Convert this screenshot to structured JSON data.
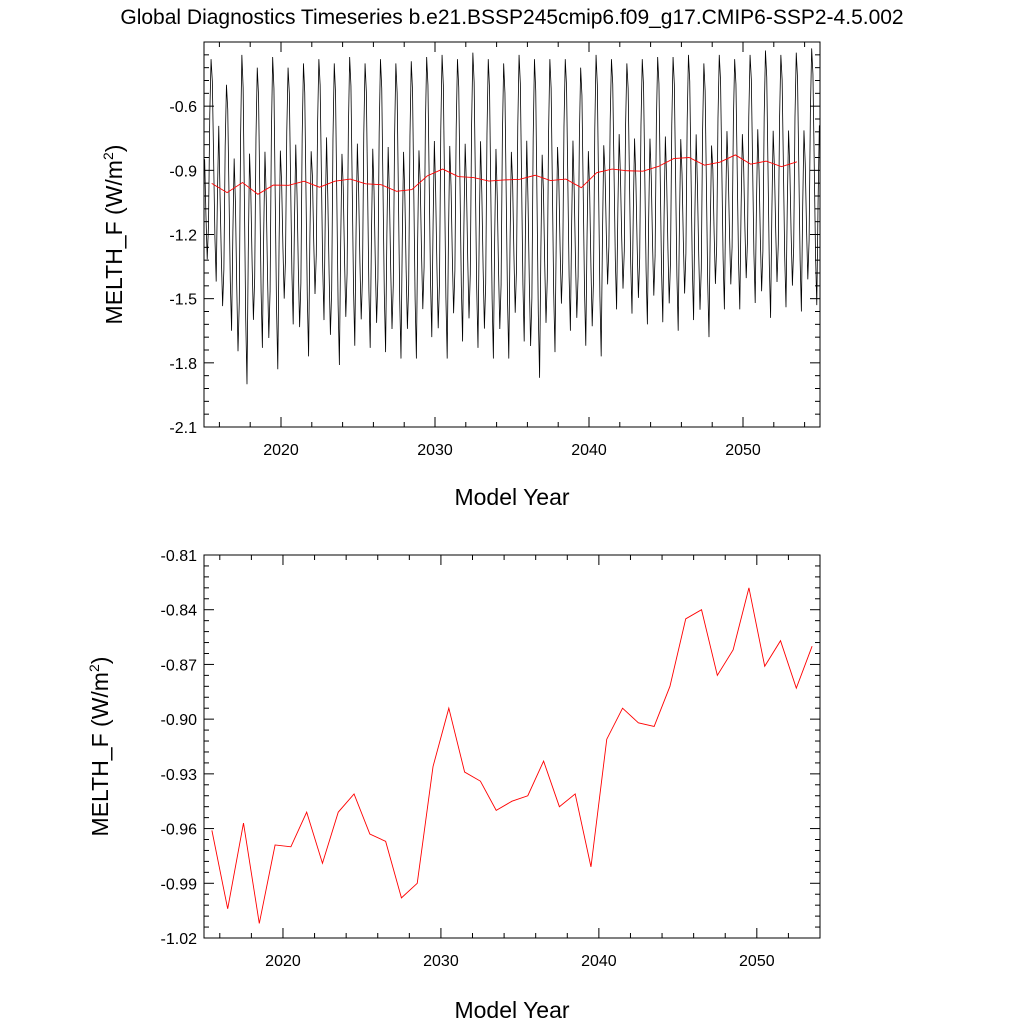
{
  "title": "Global Diagnostics Timeseries b.e21.BSSP245cmip6.f09_g17.CMIP6-SSP2-4.5.002",
  "chart_data": [
    {
      "type": "line",
      "xlabel": "Model Year",
      "ylabel_main": "MELTH_F (W/m",
      "ylabel_sup": "2",
      "ylabel_tail": ")",
      "xlim": [
        2015,
        2055
      ],
      "ylim": [
        -2.1,
        -0.3
      ],
      "xticks": [
        2020,
        2030,
        2040,
        2050
      ],
      "yticks": [
        -2.1,
        -1.8,
        -1.5,
        -1.2,
        -0.9,
        -0.6
      ],
      "ytick_labels": [
        "-2.1",
        "-1.8",
        "-1.5",
        "-1.2",
        "-0.9",
        "-0.6"
      ],
      "grid": false,
      "series": [
        {
          "kind": "monthly",
          "color": "#000000",
          "start_year": 2015,
          "months": 480,
          "year_peaks": [
            -0.38,
            -0.5,
            -0.36,
            -0.42,
            -0.37,
            -0.42,
            -0.4,
            -0.38,
            -0.4,
            -0.37,
            -0.4,
            -0.38,
            -0.4,
            -0.39,
            -0.37,
            -0.36,
            -0.38,
            -0.35,
            -0.38,
            -0.4,
            -0.36,
            -0.38,
            -0.38,
            -0.38,
            -0.42,
            -0.36,
            -0.38,
            -0.4,
            -0.38,
            -0.37,
            -0.37,
            -0.36,
            -0.4,
            -0.36,
            -0.38,
            -0.36,
            -0.34,
            -0.36,
            -0.35,
            -0.33
          ],
          "year_troughs": [
            -1.42,
            -1.65,
            -1.9,
            -1.73,
            -1.83,
            -1.62,
            -1.77,
            -1.6,
            -1.81,
            -1.72,
            -1.73,
            -1.75,
            -1.78,
            -1.78,
            -1.68,
            -1.78,
            -1.7,
            -1.73,
            -1.78,
            -1.78,
            -1.7,
            -1.87,
            -1.75,
            -1.65,
            -1.72,
            -1.77,
            -1.55,
            -1.57,
            -1.62,
            -1.61,
            -1.65,
            -1.6,
            -1.68,
            -1.55,
            -1.55,
            -1.52,
            -1.59,
            -1.54,
            -1.56,
            -1.53
          ]
        },
        {
          "kind": "annual",
          "color": "#ff0000",
          "x": [
            2015.5,
            2016.5,
            2017.5,
            2018.5,
            2019.5,
            2020.5,
            2021.5,
            2022.5,
            2023.5,
            2024.5,
            2025.5,
            2026.5,
            2027.5,
            2028.5,
            2029.5,
            2030.5,
            2031.5,
            2032.5,
            2033.5,
            2034.5,
            2035.5,
            2036.5,
            2037.5,
            2038.5,
            2039.5,
            2040.5,
            2041.5,
            2042.5,
            2043.5,
            2044.5,
            2045.5,
            2046.5,
            2047.5,
            2048.5,
            2049.5,
            2050.5,
            2051.5,
            2052.5,
            2053.5
          ],
          "values": [
            -0.961,
            -1.004,
            -0.957,
            -1.012,
            -0.969,
            -0.97,
            -0.951,
            -0.979,
            -0.951,
            -0.941,
            -0.963,
            -0.967,
            -0.998,
            -0.99,
            -0.926,
            -0.894,
            -0.929,
            -0.934,
            -0.95,
            -0.945,
            -0.942,
            -0.923,
            -0.948,
            -0.941,
            -0.981,
            -0.911,
            -0.894,
            -0.902,
            -0.904,
            -0.882,
            -0.845,
            -0.84,
            -0.876,
            -0.862,
            -0.828,
            -0.871,
            -0.857,
            -0.883,
            -0.86
          ]
        }
      ]
    },
    {
      "type": "line",
      "xlabel": "Model Year",
      "ylabel_main": "MELTH_F (W/m",
      "ylabel_sup": "2",
      "ylabel_tail": ")",
      "xlim": [
        2015,
        2054
      ],
      "ylim": [
        -1.02,
        -0.81
      ],
      "xticks": [
        2020,
        2030,
        2040,
        2050
      ],
      "yticks": [
        -1.02,
        -0.99,
        -0.96,
        -0.93,
        -0.9,
        -0.87,
        -0.84,
        -0.81
      ],
      "ytick_labels": [
        "-1.02",
        "-0.99",
        "-0.96",
        "-0.93",
        "-0.90",
        "-0.87",
        "-0.84",
        "-0.81"
      ],
      "grid": false,
      "series": [
        {
          "kind": "annual",
          "color": "#ff0000",
          "x": [
            2015.5,
            2016.5,
            2017.5,
            2018.5,
            2019.5,
            2020.5,
            2021.5,
            2022.5,
            2023.5,
            2024.5,
            2025.5,
            2026.5,
            2027.5,
            2028.5,
            2029.5,
            2030.5,
            2031.5,
            2032.5,
            2033.5,
            2034.5,
            2035.5,
            2036.5,
            2037.5,
            2038.5,
            2039.5,
            2040.5,
            2041.5,
            2042.5,
            2043.5,
            2044.5,
            2045.5,
            2046.5,
            2047.5,
            2048.5,
            2049.5,
            2050.5,
            2051.5,
            2052.5,
            2053.5
          ],
          "values": [
            -0.961,
            -1.004,
            -0.957,
            -1.012,
            -0.969,
            -0.97,
            -0.951,
            -0.979,
            -0.951,
            -0.941,
            -0.963,
            -0.967,
            -0.998,
            -0.99,
            -0.926,
            -0.894,
            -0.929,
            -0.934,
            -0.95,
            -0.945,
            -0.942,
            -0.923,
            -0.948,
            -0.941,
            -0.981,
            -0.911,
            -0.894,
            -0.902,
            -0.904,
            -0.882,
            -0.845,
            -0.84,
            -0.876,
            -0.862,
            -0.828,
            -0.871,
            -0.857,
            -0.883,
            -0.86
          ]
        }
      ]
    }
  ]
}
